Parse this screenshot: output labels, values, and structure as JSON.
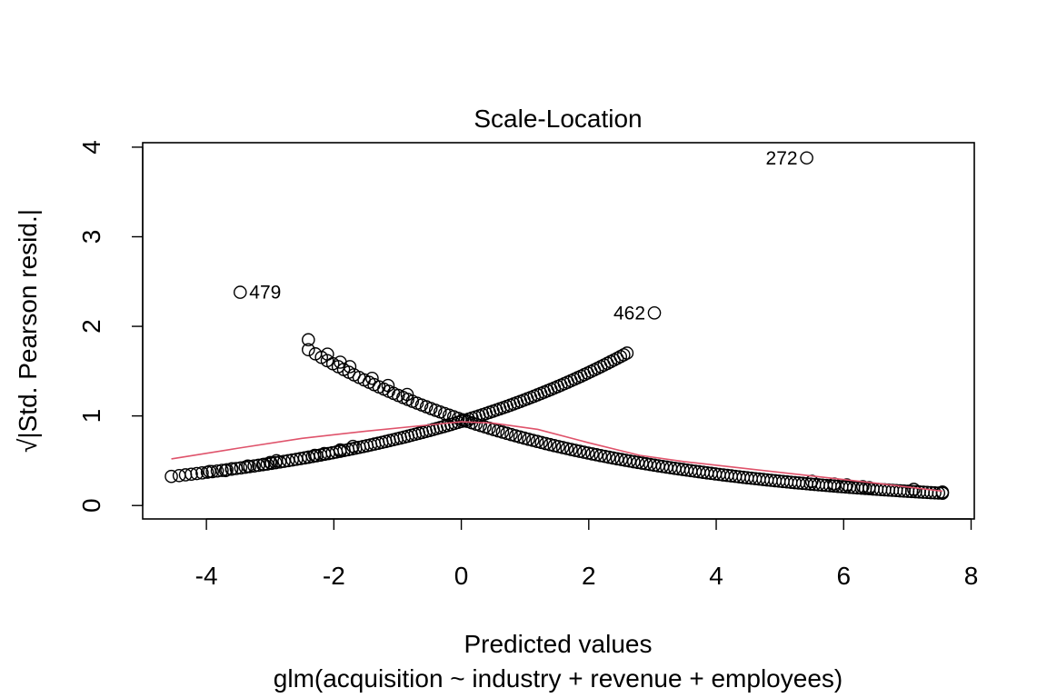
{
  "chart_data": {
    "type": "scatter",
    "title": "Scale-Location",
    "xlabel": "Predicted values",
    "sublabel": "glm(acquisition ~ industry + revenue + employees)",
    "ylabel": "√|Std. Pearson resid.|",
    "xlim": [
      -5.0,
      8.05
    ],
    "ylim": [
      -0.15,
      4.05
    ],
    "x_ticks": [
      -4,
      -2,
      0,
      2,
      4,
      6,
      8
    ],
    "y_ticks": [
      0,
      1,
      2,
      3,
      4
    ],
    "x_tick_labels": [
      "-4",
      "-2",
      "0",
      "2",
      "4",
      "6",
      "8"
    ],
    "y_tick_labels": [
      "0",
      "1",
      "2",
      "3",
      "4"
    ],
    "grid": false,
    "point_color": "#000000",
    "smooth_color": "#DF536B",
    "branch_up": {
      "x_start": -4.55,
      "x_end": 2.6,
      "count": 120,
      "x_extra": [
        -3.95,
        -3.7,
        -3.6,
        -3.35,
        -3.1,
        -3.0,
        -2.9,
        -2.4,
        -2.3,
        -2.15,
        -1.9,
        -1.7
      ],
      "y_extra": [
        0.38,
        0.39,
        0.41,
        0.44,
        0.46,
        0.48,
        0.5,
        0.54,
        0.56,
        0.58,
        0.62,
        0.66
      ]
    },
    "branch_down": {
      "x_start": -2.4,
      "x_end": 7.55,
      "count": 150,
      "x_extra": [
        -2.4,
        -2.1,
        -1.9,
        -1.75,
        -1.4,
        -1.15,
        -0.85,
        5.5,
        5.85,
        6.05,
        6.3,
        6.4,
        7.1,
        7.55
      ],
      "y_extra": [
        1.85,
        1.69,
        1.6,
        1.55,
        1.42,
        1.34,
        1.24,
        0.27,
        0.24,
        0.23,
        0.21,
        0.2,
        0.18,
        0.15
      ]
    },
    "smooth_line": {
      "x": [
        -4.55,
        -3.5,
        -2.5,
        -1.5,
        -0.5,
        0,
        0.5,
        1.2,
        2.0,
        2.8,
        3.5,
        4.5,
        5.5,
        6.5,
        7.55
      ],
      "y": [
        0.52,
        0.64,
        0.75,
        0.83,
        0.9,
        0.935,
        0.92,
        0.85,
        0.7,
        0.56,
        0.49,
        0.41,
        0.33,
        0.25,
        0.16
      ]
    },
    "labeled_points": [
      {
        "id": "272",
        "x": 5.42,
        "y": 3.88,
        "label_side": "left"
      },
      {
        "id": "479",
        "x": -3.47,
        "y": 2.38,
        "label_side": "right"
      },
      {
        "id": "462",
        "x": 3.03,
        "y": 2.15,
        "label_side": "left"
      }
    ]
  }
}
